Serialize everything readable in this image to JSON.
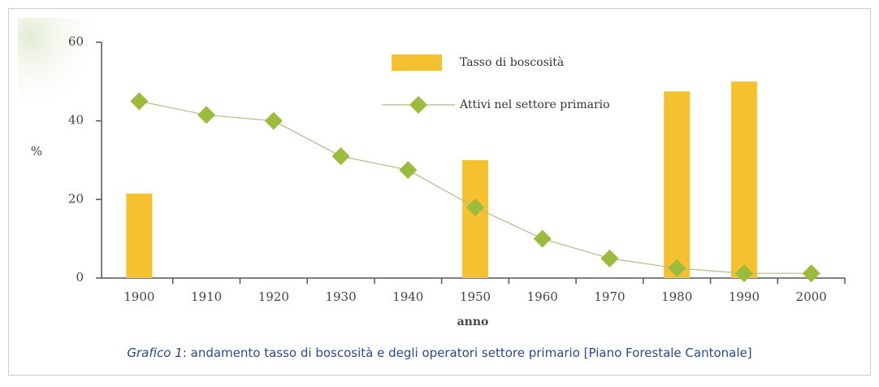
{
  "chart_data": {
    "type": "bar-line",
    "ylabel": "%",
    "xlabel": "anno",
    "categories": [
      "1900",
      "1910",
      "1920",
      "1930",
      "1940",
      "1950",
      "1960",
      "1970",
      "1980",
      "1990",
      "2000"
    ],
    "series": [
      {
        "name": "Tasso di boscosità",
        "type": "bar",
        "color": "#f5c12e",
        "values": [
          21.5,
          null,
          null,
          null,
          null,
          30,
          null,
          null,
          47.5,
          50,
          null
        ]
      },
      {
        "name": "Attivi nel settore primario",
        "type": "line",
        "color": "#9bbb3c",
        "values": [
          45,
          41.5,
          40,
          31,
          27.5,
          18,
          10,
          5,
          2.5,
          1.2,
          1.2
        ]
      }
    ],
    "ylim": [
      0,
      60
    ],
    "yticks": [
      0,
      20,
      40,
      60
    ],
    "grid": false,
    "legend": "top-right",
    "caption": {
      "label": "Grafico 1",
      "text": ": andamento tasso di boscosità e degli operatori settore primario [Piano Forestale Cantonale]"
    }
  }
}
